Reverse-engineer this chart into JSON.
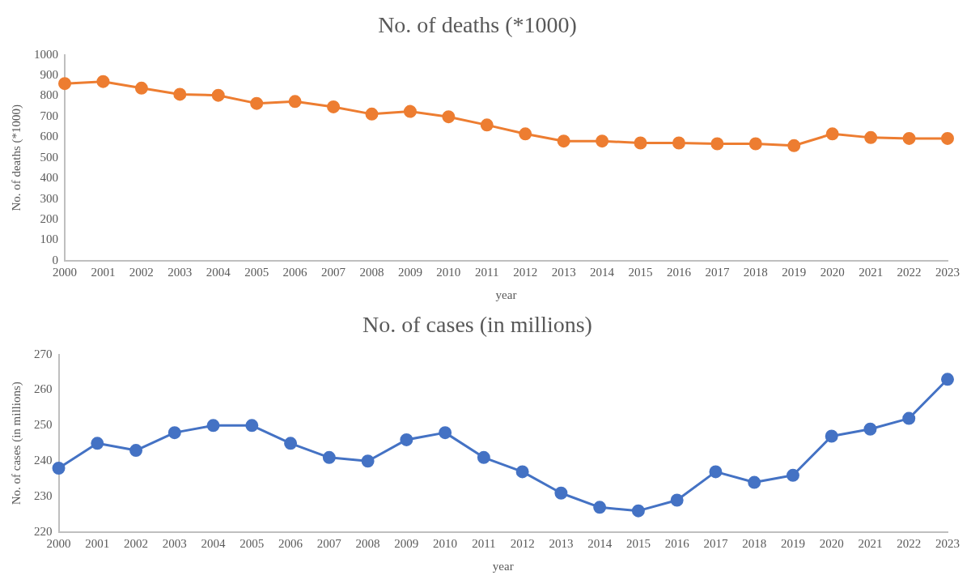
{
  "chart_data": [
    {
      "type": "line",
      "title": "No. of deaths (*1000)",
      "xlabel": "year",
      "ylabel": "No. of deaths (*1000)",
      "categories": [
        "2000",
        "2001",
        "2002",
        "2003",
        "2004",
        "2005",
        "2006",
        "2007",
        "2008",
        "2009",
        "2010",
        "2011",
        "2012",
        "2013",
        "2014",
        "2015",
        "2016",
        "2017",
        "2018",
        "2019",
        "2020",
        "2021",
        "2022",
        "2023"
      ],
      "series": [
        {
          "color": "#ed7d31",
          "values": [
            860,
            870,
            838,
            808,
            803,
            764,
            773,
            747,
            712,
            725,
            699,
            659,
            616,
            581,
            581,
            572,
            572,
            568,
            568,
            559,
            616,
            598,
            594,
            594
          ]
        }
      ],
      "ylim": [
        0,
        1000
      ],
      "yticks": [
        0,
        100,
        200,
        300,
        400,
        500,
        600,
        700,
        800,
        900,
        1000
      ],
      "grid": false,
      "legend": false,
      "marker": "circle",
      "line_style": "solid"
    },
    {
      "type": "line",
      "title": "No. of cases (in millions)",
      "xlabel": "year",
      "ylabel": "No. of cases (in millions)",
      "categories": [
        "2000",
        "2001",
        "2002",
        "2003",
        "2004",
        "2005",
        "2006",
        "2007",
        "2008",
        "2009",
        "2010",
        "2011",
        "2012",
        "2013",
        "2014",
        "2015",
        "2016",
        "2017",
        "2018",
        "2019",
        "2020",
        "2021",
        "2022",
        "2023"
      ],
      "series": [
        {
          "color": "#4472c4",
          "values": [
            238,
            245,
            243,
            248,
            250,
            250,
            245,
            241,
            240,
            246,
            248,
            241,
            237,
            231,
            227,
            226,
            229,
            237,
            234,
            236,
            247,
            249,
            252,
            263
          ]
        }
      ],
      "ylim": [
        220,
        270
      ],
      "yticks": [
        220,
        230,
        240,
        250,
        260,
        270
      ],
      "grid": false,
      "legend": false,
      "marker": "circle",
      "line_style": "solid"
    }
  ]
}
